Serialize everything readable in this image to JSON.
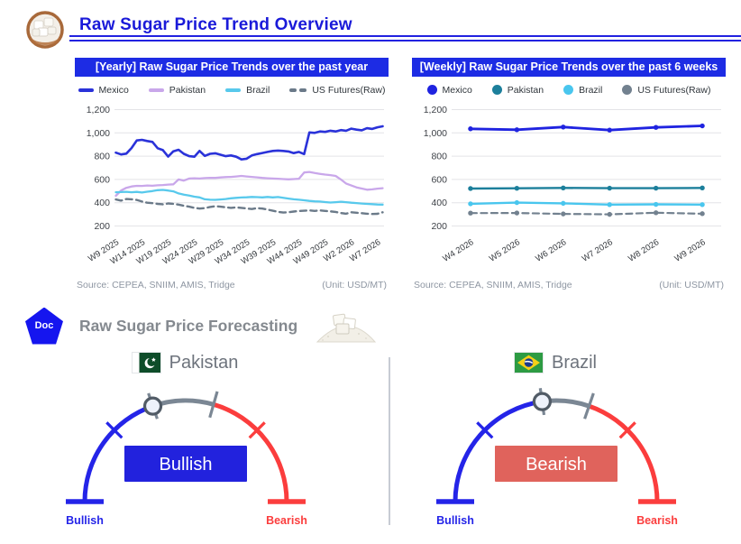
{
  "header": {
    "title": "Raw Sugar Price Trend Overview",
    "title_color": "#1a1ad9",
    "underline_color": "#2222e0"
  },
  "icons": {
    "sugar_bowl": "sugar-bowl-icon",
    "doc_badge": "doc-pentagon-icon",
    "doc_badge_bg": "#1515ef",
    "sugar_pile": "sugar-pile-icon",
    "pakistan_flag": "pakistan-flag-icon",
    "brazil_flag": "brazil-flag-icon"
  },
  "chart_data": [
    {
      "type": "line",
      "title": "[Yearly] Raw Sugar Price Trends over the past year",
      "banner_bg": "#1d2ce4",
      "source": "Source: CEPEA, SNIIM, AMIS, Tridge",
      "unit": "(Unit: USD/MT)",
      "ylim": [
        150,
        1250
      ],
      "yticks": [
        200,
        400,
        600,
        800,
        1000,
        1200
      ],
      "grid": true,
      "legend_position": "top",
      "legend_marker": "line",
      "tick_every": 5,
      "edge_pad_frac": 0.005,
      "x_tick_labels": [
        "W9 2025",
        "W14 2025",
        "W19 2025",
        "W24 2025",
        "W29 2025",
        "W34 2025",
        "W39 2025",
        "W44 2025",
        "W49 2025",
        "W2 2026",
        "W7 2026"
      ],
      "series": [
        {
          "name": "Mexico",
          "color": "#2a32d9",
          "style": "solid",
          "width": 2.6,
          "markers": false,
          "values": [
            830,
            815,
            822,
            870,
            935,
            940,
            930,
            922,
            868,
            852,
            796,
            842,
            855,
            820,
            800,
            795,
            845,
            802,
            820,
            825,
            812,
            800,
            806,
            795,
            772,
            778,
            806,
            818,
            827,
            836,
            845,
            848,
            845,
            840,
            826,
            836,
            818,
            1004,
            1000,
            1012,
            1008,
            1018,
            1012,
            1024,
            1018,
            1036,
            1028,
            1022,
            1040,
            1034,
            1048,
            1056
          ]
        },
        {
          "name": "Pakistan",
          "color": "#c9a7ea",
          "style": "solid",
          "width": 2.3,
          "markers": false,
          "values": [
            460,
            505,
            528,
            540,
            545,
            544,
            548,
            546,
            550,
            552,
            556,
            558,
            600,
            590,
            608,
            610,
            608,
            612,
            614,
            613,
            617,
            620,
            622,
            626,
            630,
            626,
            622,
            618,
            613,
            610,
            608,
            606,
            603,
            601,
            603,
            606,
            660,
            664,
            655,
            648,
            642,
            637,
            630,
            600,
            565,
            548,
            532,
            522,
            512,
            515,
            521,
            525
          ]
        },
        {
          "name": "Brazil",
          "color": "#58c9ec",
          "style": "solid",
          "width": 2.3,
          "markers": false,
          "values": [
            490,
            492,
            494,
            490,
            493,
            488,
            495,
            500,
            508,
            510,
            505,
            498,
            480,
            470,
            462,
            452,
            446,
            430,
            426,
            425,
            428,
            432,
            438,
            442,
            445,
            447,
            450,
            448,
            446,
            450,
            446,
            449,
            442,
            436,
            430,
            426,
            421,
            416,
            412,
            410,
            406,
            402,
            405,
            409,
            405,
            400,
            397,
            393,
            390,
            388,
            385,
            384
          ]
        },
        {
          "name": "US Futures(Raw)",
          "color": "#6b7a89",
          "style": "dashed",
          "width": 2.4,
          "markers": false,
          "values": [
            428,
            418,
            432,
            430,
            424,
            410,
            400,
            396,
            390,
            386,
            394,
            390,
            384,
            374,
            366,
            356,
            350,
            354,
            364,
            370,
            366,
            361,
            356,
            360,
            356,
            351,
            346,
            354,
            350,
            341,
            331,
            322,
            316,
            319,
            324,
            329,
            331,
            334,
            330,
            334,
            330,
            326,
            321,
            312,
            306,
            318,
            314,
            310,
            306,
            303,
            305,
            318
          ]
        }
      ]
    },
    {
      "type": "line",
      "title": "[Weekly] Raw Sugar Price Trends over the past 6 weeks",
      "banner_bg": "#1d2ce4",
      "source": "Source: CEPEA, SNIIM, AMIS, Tridge",
      "unit": "(Unit: USD/MT)",
      "ylim": [
        150,
        1250
      ],
      "yticks": [
        200,
        400,
        600,
        800,
        1000,
        1200
      ],
      "grid": true,
      "legend_position": "top",
      "legend_marker": "circle",
      "tick_every": 1,
      "edge_pad_frac": 0.07,
      "x_tick_labels": [
        "W4 2026",
        "W5 2026",
        "W6 2026",
        "W7 2026",
        "W8 2026",
        "W9 2026"
      ],
      "series": [
        {
          "name": "Mexico",
          "color": "#1f23e0",
          "style": "solid",
          "width": 2.8,
          "markers": true,
          "values": [
            1035,
            1027,
            1050,
            1024,
            1047,
            1060
          ]
        },
        {
          "name": "Pakistan",
          "color": "#1c7f9b",
          "style": "solid",
          "width": 2.4,
          "markers": true,
          "values": [
            522,
            524,
            527,
            525,
            525,
            527
          ]
        },
        {
          "name": "Brazil",
          "color": "#49c6ee",
          "style": "solid",
          "width": 2.4,
          "markers": true,
          "values": [
            391,
            401,
            395,
            384,
            386,
            384
          ]
        },
        {
          "name": "US Futures(Raw)",
          "color": "#72818f",
          "style": "dashed",
          "width": 2.2,
          "markers": true,
          "values": [
            311,
            312,
            304,
            300,
            314,
            306
          ]
        }
      ]
    }
  ],
  "forecast": {
    "badge_label": "Doc",
    "title": "Raw Sugar Price Forecasting",
    "gauges": [
      {
        "country": "Pakistan",
        "verdict": "Bullish",
        "verdict_bg": "#2222dd",
        "verdict_text_color": "#ffffff",
        "left_label": "Bullish",
        "right_label": "Bearish",
        "blue": "#2424e8",
        "red": "#fb3d3d",
        "gray": "#7b8794",
        "gray_start_deg": -19,
        "gray_end_deg": 16,
        "marker_deg": -19
      },
      {
        "country": "Brazil",
        "verdict": "Bearish",
        "verdict_bg": "#e0635c",
        "verdict_text_color": "#ffffff",
        "left_label": "Bullish",
        "right_label": "Bearish",
        "blue": "#2424e8",
        "red": "#fb3d3d",
        "gray": "#7b8794",
        "gray_start_deg": -8,
        "gray_end_deg": 19,
        "marker_deg": -8
      }
    ]
  }
}
